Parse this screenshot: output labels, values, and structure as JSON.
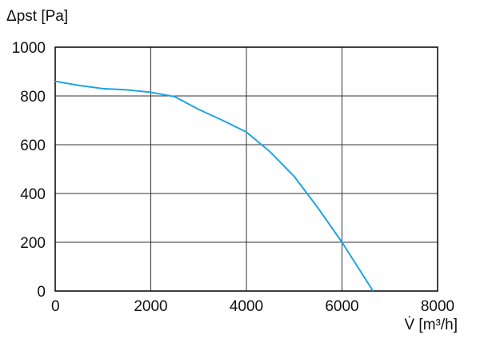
{
  "chart_data": {
    "type": "line",
    "ylabel": "Δpst [Pa]",
    "xlabel": "V̇ [m³/h]",
    "x": [
      0,
      500,
      1000,
      1500,
      2000,
      2500,
      3000,
      3500,
      4000,
      4500,
      5000,
      5500,
      6000,
      6650
    ],
    "series": [
      {
        "color": "#1ea4e2",
        "values": [
          860,
          843,
          830,
          825,
          815,
          797,
          745,
          700,
          652,
          570,
          470,
          340,
          200,
          0
        ]
      }
    ],
    "xlim": [
      0,
      8000
    ],
    "xticks": [
      0,
      2000,
      4000,
      6000,
      8000
    ],
    "ylim": [
      0,
      1000
    ],
    "yticks": [
      0,
      200,
      400,
      600,
      800,
      1000
    ],
    "grid": true
  }
}
